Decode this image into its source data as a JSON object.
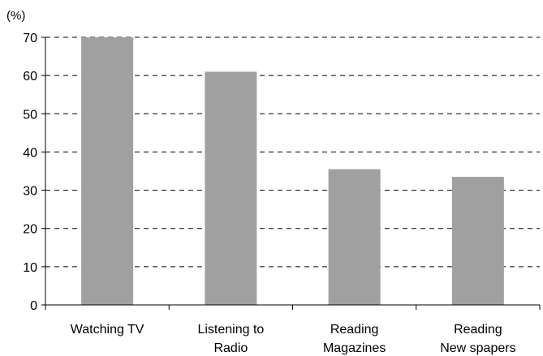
{
  "chart_data": {
    "type": "bar",
    "unit_label": "(%)",
    "categories": [
      [
        "Watching TV"
      ],
      [
        "Listening to",
        "Radio"
      ],
      [
        "Reading",
        "Magazines"
      ],
      [
        "Reading",
        "New spapers"
      ]
    ],
    "values": [
      70,
      61,
      35.5,
      33.5
    ],
    "y_ticks": [
      0,
      10,
      20,
      30,
      40,
      50,
      60,
      70
    ],
    "ylim": [
      0,
      70
    ],
    "grid": true,
    "grid_style": "dashed",
    "bar_color": "#a0a0a0",
    "axis_color": "#000000"
  }
}
